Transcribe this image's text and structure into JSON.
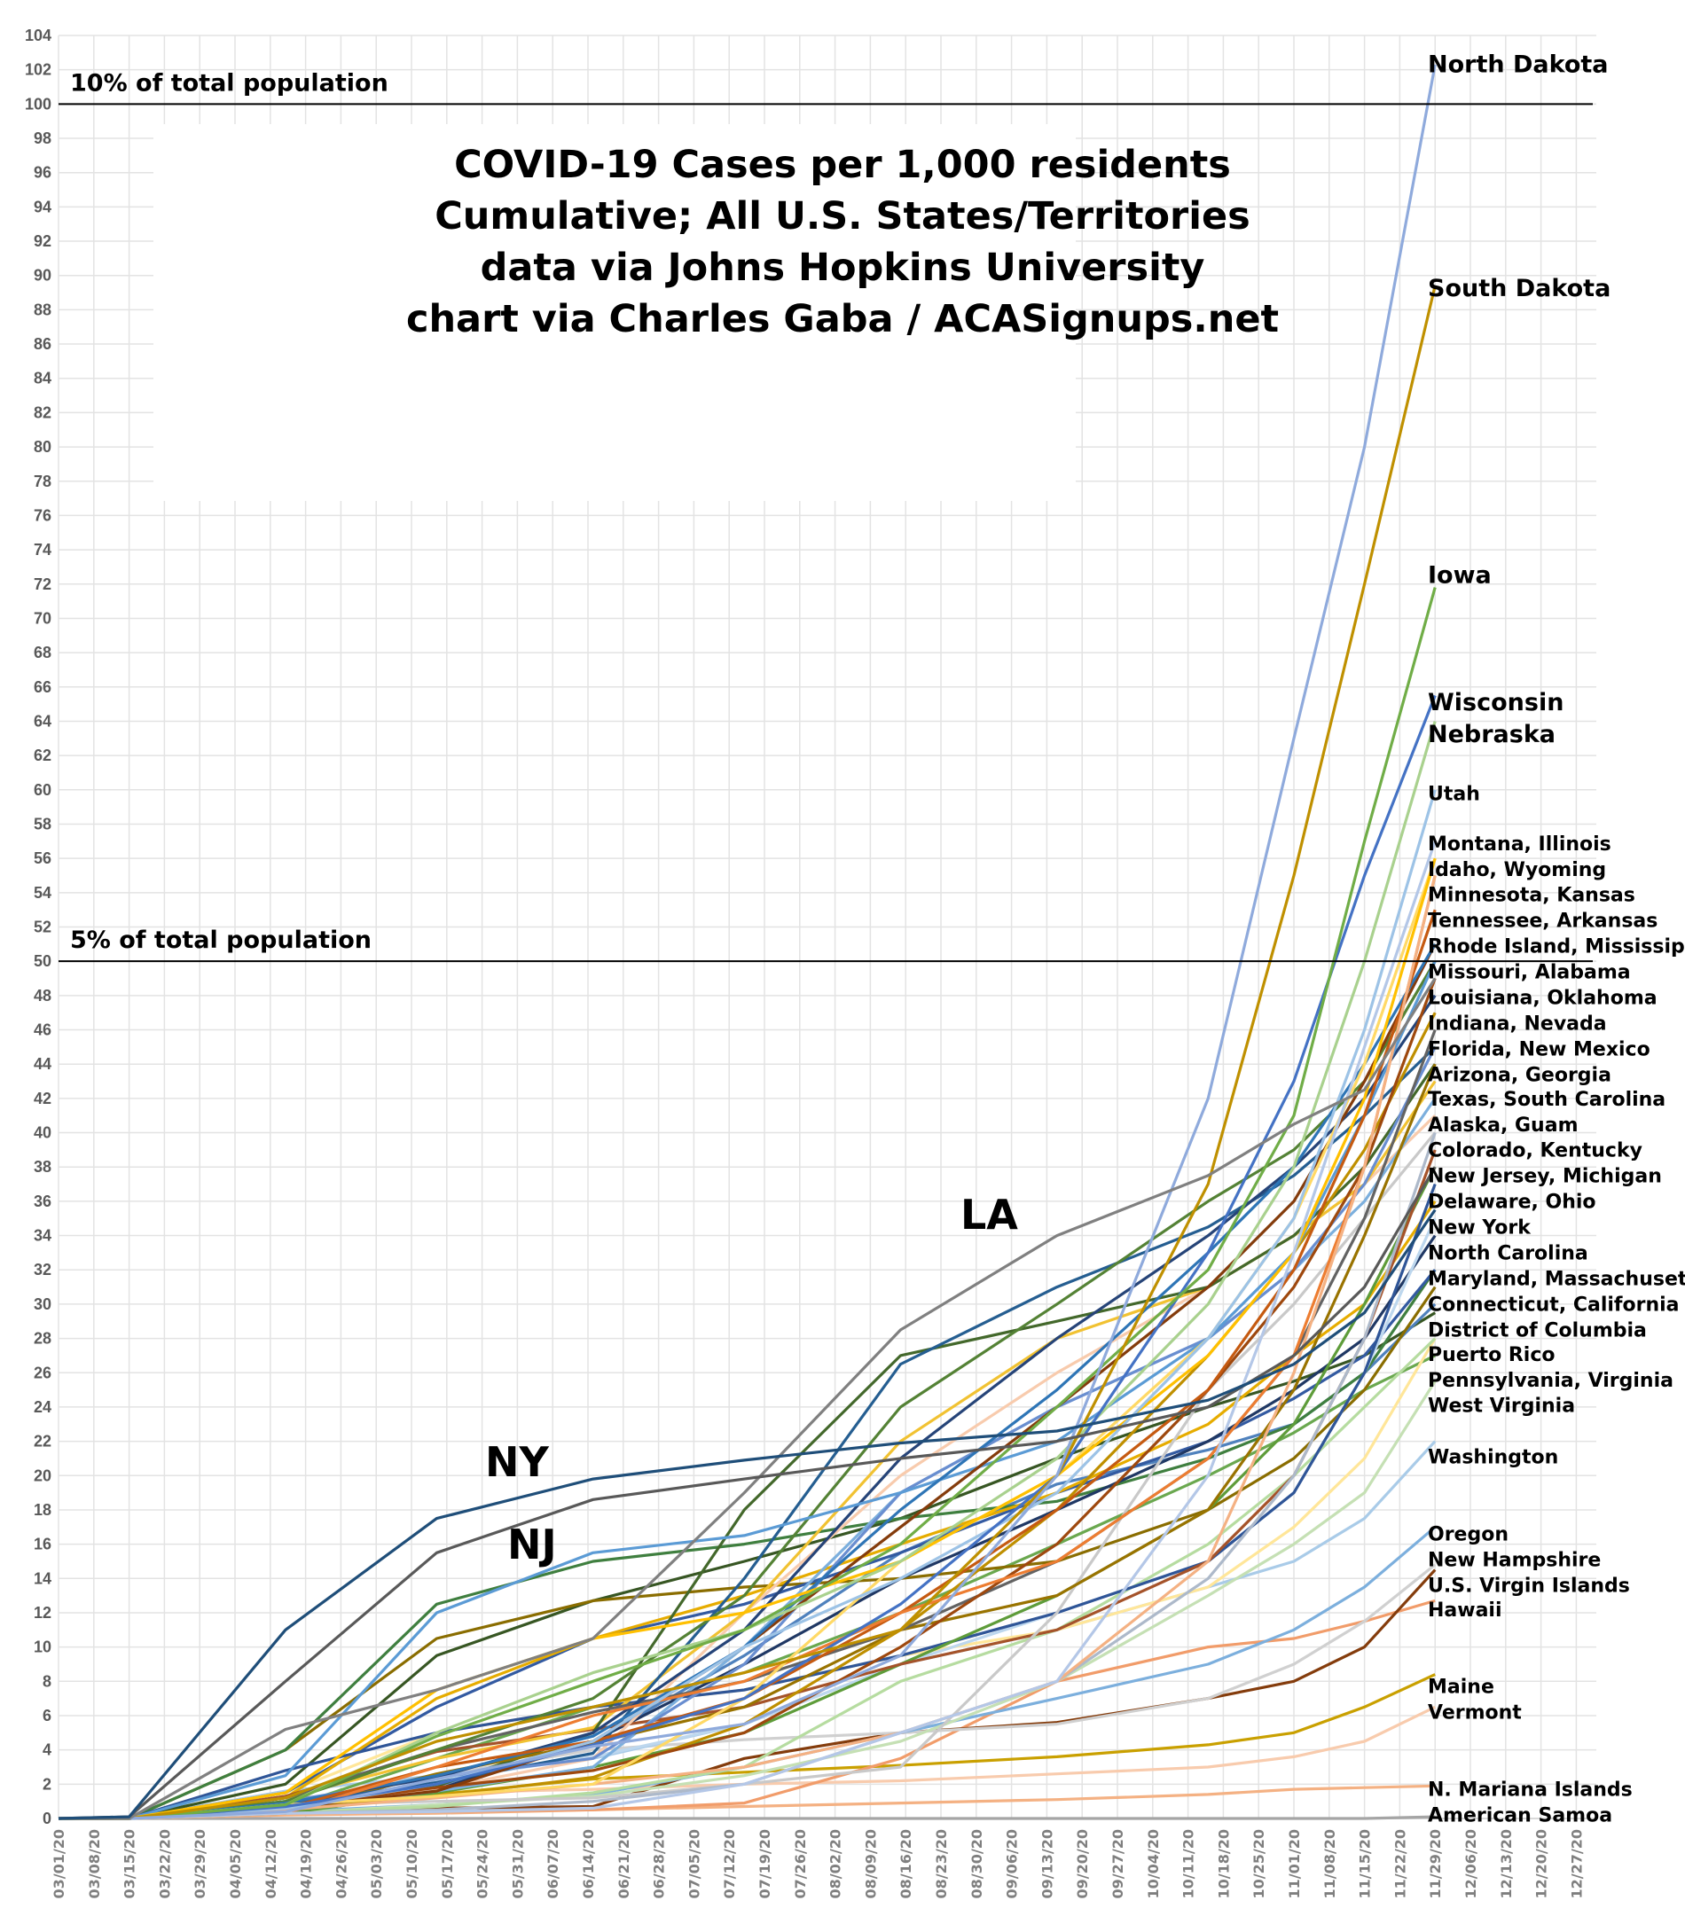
{
  "chart_data": {
    "type": "line",
    "title": [
      "COVID-19 Cases per 1,000 residents",
      "Cumulative; All U.S. States/Territories",
      "data via Johns Hopkins University",
      "chart via Charles Gaba / ACASignups.net"
    ],
    "xlabel": "",
    "ylabel": "",
    "ylim": [
      0,
      104
    ],
    "yticks_step": 2,
    "grid": true,
    "legend": "none (direct end labels at right)",
    "x_tick_labels": [
      "03/01/20",
      "03/08/20",
      "03/15/20",
      "03/22/20",
      "03/29/20",
      "04/05/20",
      "04/12/20",
      "04/19/20",
      "04/26/20",
      "05/03/20",
      "05/10/20",
      "05/17/20",
      "05/24/20",
      "05/31/20",
      "06/07/20",
      "06/14/20",
      "06/21/20",
      "06/28/20",
      "07/05/20",
      "07/12/20",
      "07/19/20",
      "07/26/20",
      "08/02/20",
      "08/09/20",
      "08/16/20",
      "08/23/20",
      "08/30/20",
      "09/06/20",
      "09/13/20",
      "09/20/20",
      "09/27/20",
      "10/04/20",
      "10/11/20",
      "10/18/20",
      "10/25/20",
      "11/01/20",
      "11/08/20",
      "11/15/20",
      "11/22/20",
      "11/29/20",
      "12/06/20",
      "12/13/20",
      "12/20/20",
      "12/27/20"
    ],
    "reference_lines": [
      {
        "y": 100,
        "label": "10% of total population"
      },
      {
        "y": 50,
        "label": "5% of total population"
      }
    ],
    "annotations": [
      {
        "text": "NY",
        "series": "New York"
      },
      {
        "text": "NJ",
        "series": "New Jersey"
      },
      {
        "text": "LA",
        "series": "Louisiana"
      }
    ],
    "end_labels": [
      "North Dakota",
      "South Dakota",
      "Iowa",
      "Wisconsin",
      "Nebraska",
      "Utah",
      "Montana, Illinois",
      "Idaho, Wyoming",
      "Minnesota, Kansas",
      "Tennessee, Arkansas",
      "Rhode Island, Mississippi",
      "Missouri, Alabama",
      "Louisiana, Oklahoma",
      "Indiana, Nevada",
      "Florida, New Mexico",
      "Arizona, Georgia",
      "Texas, South Carolina",
      "Alaska, Guam",
      "Colorado, Kentucky",
      "New Jersey, Michigan",
      "Delaware, Ohio",
      "New York",
      "North Carolina",
      "Maryland, Massachusetts",
      "Connecticut, California",
      "District of Columbia",
      "Puerto Rico",
      "Pennsylvania, Virginia",
      "West Virginia",
      "Washington",
      "Oregon",
      "New Hampshire",
      "U.S. Virgin Islands",
      "Hawaii",
      "Maine",
      "Vermont",
      "N. Mariana Islands",
      "American Samoa"
    ],
    "x": [
      "2020-03-01",
      "2020-03-15",
      "2020-04-15",
      "2020-05-15",
      "2020-06-15",
      "2020-07-15",
      "2020-08-15",
      "2020-09-15",
      "2020-10-15",
      "2020-11-01",
      "2020-11-15",
      "2020-11-29"
    ],
    "series": [
      {
        "name": "New York",
        "color": "#1f4e79",
        "values": [
          0,
          0.1,
          11,
          17.5,
          19.8,
          20.9,
          21.9,
          22.6,
          24.4,
          26.5,
          29.5,
          35.5
        ]
      },
      {
        "name": "New Jersey",
        "color": "#595959",
        "values": [
          0,
          0.1,
          8,
          15.5,
          18.6,
          19.8,
          21,
          22,
          24,
          27,
          31,
          38
        ]
      },
      {
        "name": "Louisiana",
        "color": "#808080",
        "values": [
          0,
          0,
          5.2,
          7.5,
          10.5,
          19,
          28.5,
          34,
          37.5,
          40.5,
          42.5,
          49
        ]
      },
      {
        "name": "North Dakota",
        "color": "#8faadc",
        "values": [
          0,
          0,
          0.4,
          2.3,
          4.2,
          5.5,
          9.5,
          20,
          42,
          63,
          80,
          102.3
        ]
      },
      {
        "name": "South Dakota",
        "color": "#bf9000",
        "values": [
          0,
          0,
          1.2,
          4.5,
          6.5,
          8.5,
          11,
          20,
          37,
          55,
          72,
          89.4
        ]
      },
      {
        "name": "Iowa",
        "color": "#70ad47",
        "values": [
          0,
          0,
          0.8,
          4.8,
          8,
          11,
          16,
          24,
          32,
          41,
          57,
          71.8
        ]
      },
      {
        "name": "Wisconsin",
        "color": "#4472c4",
        "values": [
          0,
          0,
          0.7,
          2,
          4.3,
          7,
          12.5,
          20,
          33,
          43,
          55,
          65.5
        ]
      },
      {
        "name": "Nebraska",
        "color": "#a9d18e",
        "values": [
          0,
          0,
          0.8,
          5,
          8.5,
          11,
          15,
          21,
          30,
          38,
          50,
          64
        ]
      },
      {
        "name": "Utah",
        "color": "#9dc3e6",
        "values": [
          0,
          0,
          0.6,
          2,
          4.5,
          10,
          14,
          19,
          28,
          35,
          46,
          60
        ]
      },
      {
        "name": "Montana",
        "color": "#b4c7e7",
        "values": [
          0,
          0,
          0.3,
          0.4,
          0.6,
          2,
          5,
          8,
          20,
          33,
          45,
          57
        ]
      },
      {
        "name": "Illinois",
        "color": "#ffc000",
        "values": [
          0,
          0,
          1.5,
          7.5,
          10.5,
          12,
          15,
          20,
          27,
          33,
          42,
          56
        ]
      },
      {
        "name": "Idaho",
        "color": "#ffd966",
        "values": [
          0,
          0,
          0.8,
          1.3,
          2,
          7,
          15,
          20,
          28,
          35,
          44,
          56
        ]
      },
      {
        "name": "Wyoming",
        "color": "#f4b183",
        "values": [
          0,
          0,
          0.5,
          1.2,
          2,
          3,
          5,
          8,
          15,
          26,
          38,
          55
        ]
      },
      {
        "name": "Minnesota",
        "color": "#ed7d31",
        "values": [
          0,
          0,
          0.3,
          3,
          6,
          8,
          12,
          15,
          21,
          27,
          38,
          55
        ]
      },
      {
        "name": "Kansas",
        "color": "#c55a11",
        "values": [
          0,
          0,
          0.6,
          3,
          4.5,
          7,
          12,
          18,
          25,
          32,
          41,
          53
        ]
      },
      {
        "name": "Tennessee",
        "color": "#2e75b6",
        "values": [
          0,
          0,
          0.9,
          2.5,
          4.8,
          10,
          18,
          25,
          33,
          38,
          44,
          51
        ]
      },
      {
        "name": "Arkansas",
        "color": "#843c0c",
        "values": [
          0,
          0,
          0.6,
          1.6,
          4.5,
          10,
          17,
          24,
          31,
          36,
          43,
          51
        ]
      },
      {
        "name": "Rhode Island",
        "color": "#5b9bd5",
        "values": [
          0,
          0,
          2.5,
          12,
          15.5,
          16.5,
          19,
          22,
          28,
          33,
          41,
          50
        ]
      },
      {
        "name": "Mississippi",
        "color": "#548235",
        "values": [
          0,
          0,
          1,
          4,
          7,
          13,
          24,
          30,
          36,
          39,
          43,
          50
        ]
      },
      {
        "name": "Missouri",
        "color": "#9e480e",
        "values": [
          0,
          0,
          0.7,
          1.8,
          2.8,
          5,
          10,
          16,
          25,
          31,
          38,
          49
        ]
      },
      {
        "name": "Alabama",
        "color": "#264478",
        "values": [
          0,
          0,
          0.9,
          2.4,
          5,
          11,
          21,
          28,
          34,
          38,
          42,
          48
        ]
      },
      {
        "name": "Oklahoma",
        "color": "#bf8f00",
        "values": [
          0,
          0,
          0.5,
          1.3,
          2.4,
          5.5,
          11,
          18,
          27,
          33,
          39,
          47
        ]
      },
      {
        "name": "Indiana",
        "color": "#636363",
        "values": [
          0,
          0,
          1.2,
          4,
          6.2,
          8,
          11,
          15,
          21,
          27,
          35,
          46
        ]
      },
      {
        "name": "Nevada",
        "color": "#698ed0",
        "values": [
          0,
          0,
          1,
          2.4,
          3.5,
          9,
          19,
          24,
          28,
          32,
          37,
          45
        ]
      },
      {
        "name": "Florida",
        "color": "#255e91",
        "values": [
          0,
          0,
          0.8,
          2.1,
          3.8,
          14,
          26.5,
          31,
          34.5,
          37.5,
          41,
          45
        ]
      },
      {
        "name": "New Mexico",
        "color": "#997300",
        "values": [
          0,
          0,
          0.4,
          2.6,
          4.4,
          6.5,
          11,
          13,
          18,
          25,
          34,
          44
        ]
      },
      {
        "name": "Arizona",
        "color": "#43682b",
        "values": [
          0,
          0,
          0.5,
          1.9,
          5,
          18,
          27,
          29,
          31,
          34,
          38,
          44
        ]
      },
      {
        "name": "Georgia",
        "color": "#f1c232",
        "values": [
          0,
          0,
          1.2,
          3.5,
          5.3,
          12,
          22,
          28,
          31,
          34,
          37,
          43
        ]
      },
      {
        "name": "Texas",
        "color": "#7cafdd",
        "values": [
          0,
          0,
          0.5,
          1.6,
          3,
          10,
          19,
          24,
          28,
          32,
          36,
          42
        ]
      },
      {
        "name": "South Carolina",
        "color": "#f8cbad",
        "values": [
          0,
          0,
          0.7,
          1.7,
          3.5,
          12,
          20,
          26,
          31,
          34,
          37,
          41
        ]
      },
      {
        "name": "Alaska",
        "color": "#adb9ca",
        "values": [
          0,
          0,
          0.3,
          0.5,
          1,
          2,
          5,
          8,
          14,
          20,
          28,
          40
        ]
      },
      {
        "name": "Guam",
        "color": "#c9c9c9",
        "values": [
          0,
          0,
          0.8,
          1,
          1.2,
          2,
          3,
          12,
          25,
          30,
          35,
          40
        ]
      },
      {
        "name": "Colorado",
        "color": "#a5532a",
        "values": [
          0,
          0,
          1.3,
          3.9,
          5.2,
          6.5,
          9,
          11,
          15,
          20,
          28,
          39
        ]
      },
      {
        "name": "Kentucky",
        "color": "#5e9c3a",
        "values": [
          0,
          0,
          0.3,
          1.5,
          3,
          5,
          9,
          13,
          18,
          23,
          30,
          38
        ]
      },
      {
        "name": "Michigan",
        "color": "#2f5597",
        "values": [
          0,
          0,
          2.8,
          5,
          6.5,
          7.5,
          9.5,
          12,
          15,
          19,
          26,
          37
        ]
      },
      {
        "name": "Delaware",
        "color": "#e6ac00",
        "values": [
          0,
          0,
          1.2,
          7,
          10.5,
          13,
          16,
          19,
          23,
          27,
          30,
          36
        ]
      },
      {
        "name": "Ohio",
        "color": "#bdd7ee",
        "values": [
          0,
          0,
          0.6,
          2.2,
          3.6,
          5.5,
          9,
          12,
          15,
          19,
          26,
          35
        ]
      },
      {
        "name": "North Carolina",
        "color": "#203864",
        "values": [
          0,
          0,
          0.4,
          1.7,
          4.5,
          9,
          14,
          18,
          22,
          25,
          28,
          34
        ]
      },
      {
        "name": "Maryland",
        "color": "#335aa1",
        "values": [
          0,
          0,
          1.5,
          6.5,
          10.5,
          12.5,
          15.5,
          19,
          22,
          24.5,
          27,
          32
        ]
      },
      {
        "name": "Massachusetts",
        "color": "#3f7f3f",
        "values": [
          0,
          0,
          4,
          12.5,
          15,
          16,
          17.5,
          18.5,
          21,
          23,
          26,
          32
        ]
      },
      {
        "name": "Connecticut",
        "color": "#8a6d00",
        "values": [
          0,
          0,
          4,
          10.5,
          12.7,
          13.5,
          14,
          15,
          18,
          21,
          25,
          31
        ]
      },
      {
        "name": "California",
        "color": "#4f81bd",
        "values": [
          0,
          0,
          0.4,
          1.9,
          4.5,
          9.5,
          15.5,
          19.5,
          21.5,
          23,
          26,
          30
        ]
      },
      {
        "name": "District of Columbia",
        "color": "#375623",
        "values": [
          0,
          0,
          2,
          9.5,
          12.7,
          15,
          17.5,
          21,
          24,
          25.5,
          27,
          29.5
        ]
      },
      {
        "name": "Puerto Rico",
        "color": "#b6dca0",
        "values": [
          0,
          0,
          0.3,
          0.7,
          1.5,
          3,
          8,
          11,
          16,
          20,
          24,
          28
        ]
      },
      {
        "name": "Pennsylvania",
        "color": "#ffe699",
        "values": [
          0,
          0,
          1.5,
          5,
          6.5,
          7.5,
          9.5,
          11,
          13.5,
          17,
          21,
          28
        ]
      },
      {
        "name": "Virginia",
        "color": "#6aa84f",
        "values": [
          0,
          0,
          0.6,
          3.5,
          6.5,
          8.5,
          12,
          16,
          20,
          22.5,
          25,
          27
        ]
      },
      {
        "name": "West Virginia",
        "color": "#c5e0b4",
        "values": [
          0,
          0,
          0.3,
          0.8,
          1.3,
          2.5,
          4.5,
          8,
          13,
          16,
          19,
          25.5
        ]
      },
      {
        "name": "Washington",
        "color": "#a9cbe8",
        "values": [
          0,
          0,
          1.6,
          2.5,
          3.5,
          5.5,
          9,
          11,
          13.5,
          15,
          17.5,
          22
        ]
      },
      {
        "name": "Oregon",
        "color": "#7cafdd",
        "values": [
          0,
          0,
          0.4,
          0.8,
          1.4,
          3,
          5,
          7,
          9,
          11,
          13.5,
          17
        ]
      },
      {
        "name": "New Hampshire",
        "color": "#d0d0d0",
        "values": [
          0,
          0,
          0.8,
          2.5,
          4,
          4.6,
          5,
          5.5,
          7,
          9,
          11.5,
          14.8
        ]
      },
      {
        "name": "U.S. Virgin Islands",
        "color": "#843c0c",
        "values": [
          0,
          0,
          0.5,
          0.6,
          0.7,
          3.5,
          5,
          5.6,
          7,
          8,
          10,
          14.5
        ]
      },
      {
        "name": "Hawaii",
        "color": "#f19c6a",
        "values": [
          0,
          0,
          0.4,
          0.4,
          0.5,
          0.9,
          3.5,
          8,
          10,
          10.5,
          11.5,
          12.7
        ]
      },
      {
        "name": "Maine",
        "color": "#c9a000",
        "values": [
          0,
          0,
          0.6,
          1.4,
          2.3,
          2.7,
          3.1,
          3.6,
          4.3,
          5,
          6.5,
          8.4
        ]
      },
      {
        "name": "Vermont",
        "color": "#f8cbad",
        "values": [
          0,
          0,
          1.2,
          1.5,
          1.7,
          2,
          2.2,
          2.6,
          3,
          3.6,
          4.5,
          6.5
        ]
      },
      {
        "name": "N. Mariana Islands",
        "color": "#f4b183",
        "values": [
          0,
          0,
          0.2,
          0.3,
          0.5,
          0.7,
          0.9,
          1.1,
          1.4,
          1.7,
          1.8,
          1.9
        ]
      },
      {
        "name": "American Samoa",
        "color": "#a5a5a5",
        "values": [
          0,
          0,
          0,
          0,
          0,
          0,
          0,
          0,
          0,
          0,
          0,
          0.1
        ]
      }
    ]
  }
}
